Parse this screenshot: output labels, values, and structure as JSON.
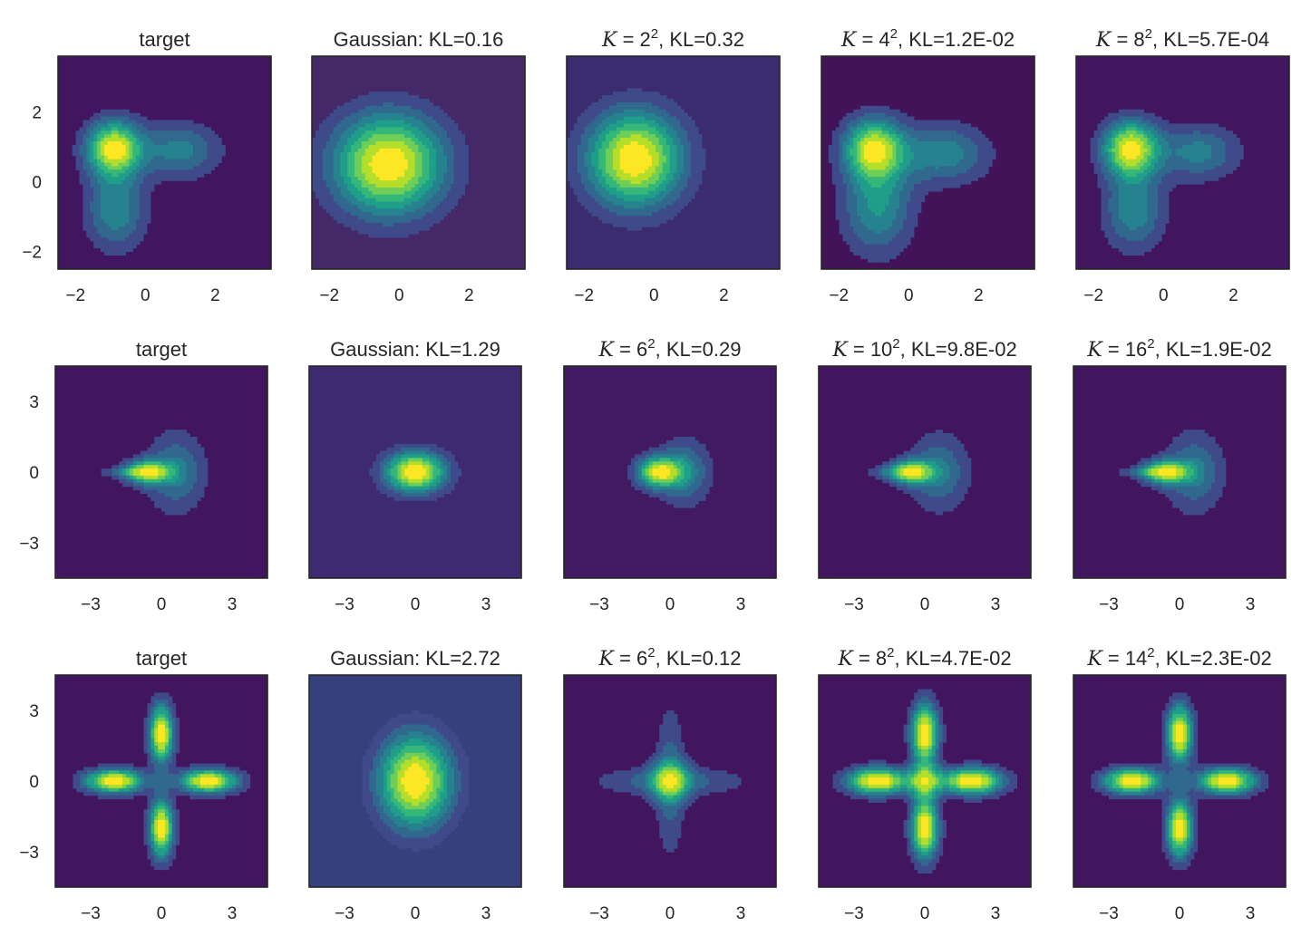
{
  "chart_data": [
    {
      "type": "heatmap",
      "subtype": "contour",
      "title": "target",
      "xlim": [
        -2.5,
        3.6
      ],
      "ylim": [
        -2.5,
        3.6
      ],
      "xticks": [
        "−2",
        "0",
        "2"
      ],
      "yticks": [
        "−2",
        "0",
        "2"
      ],
      "ytick_values": [
        -2,
        0,
        2
      ],
      "xtick_values": [
        -2,
        0,
        2
      ],
      "colormap": "viridis",
      "density": {
        "base": "#41155f",
        "peaks": [
          {
            "x": -0.9,
            "y": 0.95,
            "sx": 0.55,
            "sy": 0.55,
            "a": 1.0
          },
          {
            "x": 1.0,
            "y": 0.9,
            "sx": 0.8,
            "sy": 0.55,
            "a": 0.4
          },
          {
            "x": -0.85,
            "y": -0.8,
            "sx": 0.6,
            "sy": 0.8,
            "a": 0.45
          }
        ]
      }
    },
    {
      "type": "heatmap",
      "subtype": "contour",
      "title": "Gaussian: KL=0.16",
      "xlim": [
        -2.5,
        3.6
      ],
      "ylim": [
        -2.5,
        3.6
      ],
      "xticks": [
        "−2",
        "0",
        "2"
      ],
      "yticks": [],
      "xtick_values": [
        -2,
        0,
        2
      ],
      "colormap": "viridis",
      "density": {
        "base": "#442868",
        "peaks": [
          {
            "x": -0.3,
            "y": 0.5,
            "sx": 1.1,
            "sy": 1.0,
            "a": 1.0
          }
        ]
      }
    },
    {
      "type": "heatmap",
      "subtype": "contour",
      "title": "K = 2², KL=0.32",
      "title_math": {
        "K": "K",
        "exp": "2",
        "rest": ", KL=0.32",
        "base": "2"
      },
      "xlim": [
        -2.5,
        3.6
      ],
      "ylim": [
        -2.5,
        3.6
      ],
      "xticks": [
        "−2",
        "0",
        "2"
      ],
      "yticks": [],
      "xtick_values": [
        -2,
        0,
        2
      ],
      "colormap": "viridis",
      "density": {
        "base": "#3b2c6f",
        "peaks": [
          {
            "x": -0.55,
            "y": 0.65,
            "sx": 0.95,
            "sy": 0.95,
            "a": 1.0
          }
        ]
      }
    },
    {
      "type": "heatmap",
      "subtype": "contour",
      "title": "K = 4², KL=1.2E-02",
      "title_math": {
        "K": "K",
        "exp": "2",
        "rest": ", KL=1.2E-02",
        "base": "4"
      },
      "xlim": [
        -2.5,
        3.6
      ],
      "ylim": [
        -2.5,
        3.6
      ],
      "xticks": [
        "−2",
        "0",
        "2"
      ],
      "yticks": [],
      "xtick_values": [
        -2,
        0,
        2
      ],
      "colormap": "viridis",
      "density": {
        "base": "#421358",
        "peaks": [
          {
            "x": -1.0,
            "y": 0.95,
            "sx": 0.6,
            "sy": 0.6,
            "a": 0.85
          },
          {
            "x": 1.0,
            "y": 0.8,
            "sx": 0.9,
            "sy": 0.6,
            "a": 0.4
          },
          {
            "x": -0.9,
            "y": -0.7,
            "sx": 0.7,
            "sy": 0.95,
            "a": 0.45
          }
        ]
      }
    },
    {
      "type": "heatmap",
      "subtype": "contour",
      "title": "K = 8², KL=5.7E-04",
      "title_math": {
        "K": "K",
        "exp": "2",
        "rest": ", KL=5.7E-04",
        "base": "8"
      },
      "xlim": [
        -2.5,
        3.6
      ],
      "ylim": [
        -2.5,
        3.6
      ],
      "xticks": [
        "−2",
        "0",
        "2"
      ],
      "yticks": [],
      "xtick_values": [
        -2,
        0,
        2
      ],
      "colormap": "viridis",
      "density": {
        "base": "#42165f",
        "peaks": [
          {
            "x": -0.95,
            "y": 0.95,
            "sx": 0.55,
            "sy": 0.55,
            "a": 1.0
          },
          {
            "x": 1.0,
            "y": 0.85,
            "sx": 0.8,
            "sy": 0.55,
            "a": 0.4
          },
          {
            "x": -0.85,
            "y": -0.8,
            "sx": 0.6,
            "sy": 0.8,
            "a": 0.45
          }
        ]
      }
    },
    {
      "type": "heatmap",
      "subtype": "contour",
      "title": "target",
      "xlim": [
        -4.5,
        4.5
      ],
      "ylim": [
        -4.5,
        4.5
      ],
      "xticks": [
        "−3",
        "0",
        "3"
      ],
      "yticks": [
        "−3",
        "0",
        "3"
      ],
      "xtick_values": [
        -3,
        0,
        3
      ],
      "ytick_values": [
        -3,
        0,
        3
      ],
      "colormap": "viridis",
      "density": {
        "base": "#42165f",
        "peaks": [
          {
            "x": -0.6,
            "y": 0,
            "sx": 0.7,
            "sy": 0.35,
            "a": 1.0
          },
          {
            "x": 0.6,
            "y": 0,
            "sx": 0.9,
            "sy": 1.2,
            "a": 0.45
          },
          {
            "x": -1.5,
            "y": 0,
            "sx": 0.9,
            "sy": 0.15,
            "a": 0.25
          }
        ]
      }
    },
    {
      "type": "heatmap",
      "subtype": "contour",
      "title": "Gaussian: KL=1.29",
      "xlim": [
        -4.5,
        4.5
      ],
      "ylim": [
        -4.5,
        4.5
      ],
      "xticks": [
        "−3",
        "0",
        "3"
      ],
      "yticks": [],
      "xtick_values": [
        -3,
        0,
        3
      ],
      "colormap": "viridis",
      "density": {
        "base": "#3d2a70",
        "peaks": [
          {
            "x": 0,
            "y": 0,
            "sx": 0.9,
            "sy": 0.6,
            "a": 1.0
          }
        ]
      }
    },
    {
      "type": "heatmap",
      "subtype": "contour",
      "title": "K = 6², KL=0.29",
      "title_math": {
        "K": "K",
        "exp": "2",
        "rest": ", KL=0.29",
        "base": "6"
      },
      "xlim": [
        -4.5,
        4.5
      ],
      "ylim": [
        -4.5,
        4.5
      ],
      "xticks": [
        "−3",
        "0",
        "3"
      ],
      "yticks": [],
      "xtick_values": [
        -3,
        0,
        3
      ],
      "colormap": "viridis",
      "density": {
        "base": "#421a62",
        "peaks": [
          {
            "x": -0.5,
            "y": 0,
            "sx": 0.65,
            "sy": 0.45,
            "a": 1.0
          },
          {
            "x": 0.6,
            "y": 0,
            "sx": 0.8,
            "sy": 0.95,
            "a": 0.45
          }
        ]
      }
    },
    {
      "type": "heatmap",
      "subtype": "contour",
      "title": "K = 10², KL=9.8E-02",
      "title_math": {
        "K": "K",
        "exp": "2",
        "rest": ", KL=9.8E-02",
        "base": "10"
      },
      "xlim": [
        -4.5,
        4.5
      ],
      "ylim": [
        -4.5,
        4.5
      ],
      "xticks": [
        "−3",
        "0",
        "3"
      ],
      "yticks": [],
      "xtick_values": [
        -3,
        0,
        3
      ],
      "colormap": "viridis",
      "density": {
        "base": "#42165f",
        "peaks": [
          {
            "x": -0.6,
            "y": 0,
            "sx": 0.65,
            "sy": 0.35,
            "a": 1.0
          },
          {
            "x": 0.6,
            "y": 0,
            "sx": 0.9,
            "sy": 1.15,
            "a": 0.45
          },
          {
            "x": -1.5,
            "y": 0,
            "sx": 0.9,
            "sy": 0.17,
            "a": 0.25
          }
        ]
      }
    },
    {
      "type": "heatmap",
      "subtype": "contour",
      "title": "K = 16², KL=1.9E-02",
      "title_math": {
        "K": "K",
        "exp": "2",
        "rest": ", KL=1.9E-02",
        "base": "16"
      },
      "xlim": [
        -4.5,
        4.5
      ],
      "ylim": [
        -4.5,
        4.5
      ],
      "xticks": [
        "−3",
        "0",
        "3"
      ],
      "yticks": [],
      "xtick_values": [
        -3,
        0,
        3
      ],
      "colormap": "viridis",
      "density": {
        "base": "#42165f",
        "peaks": [
          {
            "x": -0.6,
            "y": 0,
            "sx": 0.7,
            "sy": 0.35,
            "a": 1.0
          },
          {
            "x": 0.6,
            "y": 0,
            "sx": 0.9,
            "sy": 1.2,
            "a": 0.45
          },
          {
            "x": -1.5,
            "y": 0,
            "sx": 0.9,
            "sy": 0.15,
            "a": 0.25
          }
        ]
      }
    },
    {
      "type": "heatmap",
      "subtype": "contour",
      "title": "target",
      "xlim": [
        -4.5,
        4.5
      ],
      "ylim": [
        -4.5,
        4.5
      ],
      "xticks": [
        "−3",
        "0",
        "3"
      ],
      "yticks": [
        "−3",
        "0",
        "3"
      ],
      "xtick_values": [
        -3,
        0,
        3
      ],
      "ytick_values": [
        -3,
        0,
        3
      ],
      "colormap": "viridis",
      "density": {
        "base": "#42165f",
        "peaks": [
          {
            "x": 0,
            "y": 2,
            "sx": 0.35,
            "sy": 0.85,
            "a": 1.0
          },
          {
            "x": 0,
            "y": -2,
            "sx": 0.35,
            "sy": 0.85,
            "a": 1.0
          },
          {
            "x": 2,
            "y": 0,
            "sx": 0.85,
            "sy": 0.35,
            "a": 1.0
          },
          {
            "x": -2,
            "y": 0,
            "sx": 0.85,
            "sy": 0.35,
            "a": 1.0
          }
        ]
      }
    },
    {
      "type": "heatmap",
      "subtype": "contour",
      "title": "Gaussian: KL=2.72",
      "xlim": [
        -4.5,
        4.5
      ],
      "ylim": [
        -4.5,
        4.5
      ],
      "xticks": [
        "−3",
        "0",
        "3"
      ],
      "yticks": [],
      "xtick_values": [
        -3,
        0,
        3
      ],
      "colormap": "viridis",
      "density": {
        "base": "#35407d",
        "peaks": [
          {
            "x": 0,
            "y": 0,
            "sx": 1.1,
            "sy": 1.4,
            "a": 1.0
          }
        ]
      }
    },
    {
      "type": "heatmap",
      "subtype": "contour",
      "title": "K = 6², KL=0.12",
      "title_math": {
        "K": "K",
        "exp": "2",
        "rest": ", KL=0.12",
        "base": "6"
      },
      "xlim": [
        -4.5,
        4.5
      ],
      "ylim": [
        -4.5,
        4.5
      ],
      "xticks": [
        "−3",
        "0",
        "3"
      ],
      "yticks": [],
      "xtick_values": [
        -3,
        0,
        3
      ],
      "colormap": "viridis",
      "density": {
        "base": "#42165f",
        "peaks": [
          {
            "x": 0,
            "y": 0,
            "sx": 0.6,
            "sy": 0.6,
            "a": 0.8
          },
          {
            "x": 0,
            "y": 0,
            "sx": 0.45,
            "sy": 2.3,
            "a": 0.45
          },
          {
            "x": 0,
            "y": 0,
            "sx": 2.3,
            "sy": 0.45,
            "a": 0.45
          }
        ]
      }
    },
    {
      "type": "heatmap",
      "subtype": "contour",
      "title": "K = 8², KL=4.7E-02",
      "title_math": {
        "K": "K",
        "exp": "2",
        "rest": ", KL=4.7E-02",
        "base": "8"
      },
      "xlim": [
        -4.5,
        4.5
      ],
      "ylim": [
        -4.5,
        4.5
      ],
      "xticks": [
        "−3",
        "0",
        "3"
      ],
      "yticks": [],
      "xtick_values": [
        -3,
        0,
        3
      ],
      "colormap": "viridis",
      "density": {
        "base": "#42165f",
        "peaks": [
          {
            "x": 0,
            "y": 2,
            "sx": 0.4,
            "sy": 0.9,
            "a": 0.6
          },
          {
            "x": 0,
            "y": -2,
            "sx": 0.4,
            "sy": 0.9,
            "a": 0.6
          },
          {
            "x": 2,
            "y": 0,
            "sx": 0.9,
            "sy": 0.4,
            "a": 0.6
          },
          {
            "x": -2,
            "y": 0,
            "sx": 0.9,
            "sy": 0.4,
            "a": 0.6
          },
          {
            "x": 0,
            "y": 0,
            "sx": 0.5,
            "sy": 0.5,
            "a": 0.35
          }
        ]
      }
    },
    {
      "type": "heatmap",
      "subtype": "contour",
      "title": "K = 14², KL=2.3E-02",
      "title_math": {
        "K": "K",
        "exp": "2",
        "rest": ", KL=2.3E-02",
        "base": "14"
      },
      "xlim": [
        -4.5,
        4.5
      ],
      "ylim": [
        -4.5,
        4.5
      ],
      "xticks": [
        "−3",
        "0",
        "3"
      ],
      "yticks": [],
      "xtick_values": [
        -3,
        0,
        3
      ],
      "colormap": "viridis",
      "density": {
        "base": "#42165f",
        "peaks": [
          {
            "x": 0,
            "y": 2,
            "sx": 0.38,
            "sy": 0.85,
            "a": 0.9
          },
          {
            "x": 0,
            "y": -2,
            "sx": 0.38,
            "sy": 0.85,
            "a": 0.9
          },
          {
            "x": 2,
            "y": 0,
            "sx": 0.85,
            "sy": 0.38,
            "a": 0.9
          },
          {
            "x": -2,
            "y": 0,
            "sx": 0.85,
            "sy": 0.38,
            "a": 0.9
          }
        ]
      }
    }
  ],
  "colormap_levels": [
    "#3e4a89",
    "#31688e",
    "#26828e",
    "#1f9e89",
    "#35b779",
    "#6ece58",
    "#b5de2b",
    "#fde725"
  ]
}
